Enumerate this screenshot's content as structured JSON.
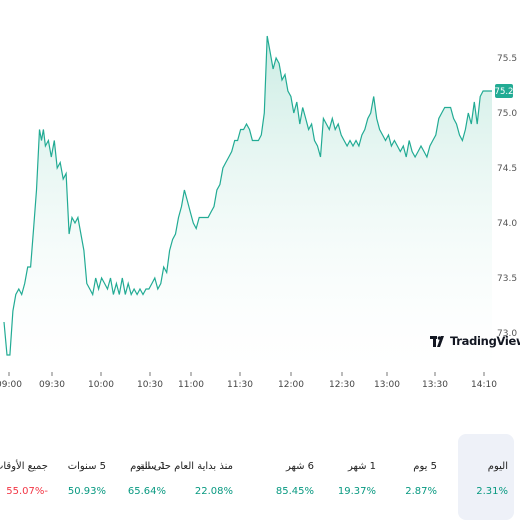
{
  "chart_data": {
    "type": "area",
    "x_ticks": [
      "09:00",
      "09:30",
      "10:00",
      "10:30",
      "11:00",
      "11:30",
      "12:00",
      "12:30",
      "13:00",
      "13:30",
      "14:10"
    ],
    "y_ticks": [
      "73.0",
      "73.5",
      "74.0",
      "74.5",
      "75.0",
      "75.5"
    ],
    "ylim": [
      72.7,
      75.7
    ],
    "xlim": [
      0,
      495
    ],
    "last_price": "75.2",
    "last_price_value": 75.2,
    "grid": false,
    "series": [
      {
        "values": [
          [
            0,
            73.1
          ],
          [
            3,
            72.8
          ],
          [
            6,
            72.8
          ],
          [
            9,
            73.2
          ],
          [
            12,
            73.35
          ],
          [
            15,
            73.4
          ],
          [
            18,
            73.35
          ],
          [
            21,
            73.45
          ],
          [
            24,
            73.6
          ],
          [
            27,
            73.6
          ],
          [
            30,
            73.95
          ],
          [
            33,
            74.3
          ],
          [
            36,
            74.85
          ],
          [
            38,
            74.75
          ],
          [
            40,
            74.85
          ],
          [
            42,
            74.7
          ],
          [
            45,
            74.75
          ],
          [
            48,
            74.6
          ],
          [
            51,
            74.75
          ],
          [
            54,
            74.5
          ],
          [
            57,
            74.55
          ],
          [
            60,
            74.4
          ],
          [
            63,
            74.45
          ],
          [
            66,
            73.9
          ],
          [
            69,
            74.05
          ],
          [
            72,
            74.0
          ],
          [
            75,
            74.05
          ],
          [
            78,
            73.9
          ],
          [
            81,
            73.75
          ],
          [
            84,
            73.45
          ],
          [
            87,
            73.4
          ],
          [
            90,
            73.35
          ],
          [
            93,
            73.5
          ],
          [
            96,
            73.4
          ],
          [
            99,
            73.5
          ],
          [
            102,
            73.45
          ],
          [
            105,
            73.4
          ],
          [
            108,
            73.5
          ],
          [
            111,
            73.35
          ],
          [
            114,
            73.45
          ],
          [
            117,
            73.35
          ],
          [
            120,
            73.5
          ],
          [
            123,
            73.35
          ],
          [
            126,
            73.45
          ],
          [
            129,
            73.35
          ],
          [
            132,
            73.4
          ],
          [
            135,
            73.35
          ],
          [
            138,
            73.4
          ],
          [
            141,
            73.35
          ],
          [
            144,
            73.4
          ],
          [
            147,
            73.4
          ],
          [
            150,
            73.45
          ],
          [
            153,
            73.5
          ],
          [
            156,
            73.4
          ],
          [
            159,
            73.45
          ],
          [
            162,
            73.6
          ],
          [
            165,
            73.55
          ],
          [
            168,
            73.75
          ],
          [
            171,
            73.85
          ],
          [
            174,
            73.9
          ],
          [
            177,
            74.05
          ],
          [
            180,
            74.15
          ],
          [
            183,
            74.3
          ],
          [
            186,
            74.2
          ],
          [
            189,
            74.1
          ],
          [
            192,
            74.0
          ],
          [
            195,
            73.95
          ],
          [
            198,
            74.05
          ],
          [
            201,
            74.05
          ],
          [
            204,
            74.05
          ],
          [
            207,
            74.05
          ],
          [
            210,
            74.1
          ],
          [
            213,
            74.15
          ],
          [
            216,
            74.3
          ],
          [
            219,
            74.35
          ],
          [
            222,
            74.5
          ],
          [
            225,
            74.55
          ],
          [
            228,
            74.6
          ],
          [
            231,
            74.65
          ],
          [
            234,
            74.75
          ],
          [
            237,
            74.75
          ],
          [
            240,
            74.85
          ],
          [
            243,
            74.85
          ],
          [
            246,
            74.9
          ],
          [
            249,
            74.85
          ],
          [
            252,
            74.75
          ],
          [
            255,
            74.75
          ],
          [
            258,
            74.75
          ],
          [
            261,
            74.8
          ],
          [
            264,
            75.0
          ],
          [
            267,
            75.7
          ],
          [
            270,
            75.55
          ],
          [
            273,
            75.4
          ],
          [
            276,
            75.5
          ],
          [
            279,
            75.45
          ],
          [
            282,
            75.3
          ],
          [
            285,
            75.35
          ],
          [
            288,
            75.2
          ],
          [
            291,
            75.15
          ],
          [
            294,
            75.0
          ],
          [
            297,
            75.1
          ],
          [
            300,
            74.9
          ],
          [
            303,
            75.05
          ],
          [
            306,
            74.95
          ],
          [
            309,
            74.85
          ],
          [
            312,
            74.9
          ],
          [
            315,
            74.75
          ],
          [
            318,
            74.7
          ],
          [
            321,
            74.6
          ],
          [
            324,
            74.95
          ],
          [
            327,
            74.9
          ],
          [
            330,
            74.85
          ],
          [
            333,
            74.95
          ],
          [
            336,
            74.85
          ],
          [
            339,
            74.9
          ],
          [
            342,
            74.8
          ],
          [
            345,
            74.75
          ],
          [
            348,
            74.7
          ],
          [
            351,
            74.75
          ],
          [
            354,
            74.7
          ],
          [
            357,
            74.75
          ],
          [
            360,
            74.7
          ],
          [
            363,
            74.8
          ],
          [
            366,
            74.85
          ],
          [
            369,
            74.95
          ],
          [
            372,
            75.0
          ],
          [
            375,
            75.15
          ],
          [
            378,
            74.95
          ],
          [
            381,
            74.85
          ],
          [
            384,
            74.8
          ],
          [
            387,
            74.75
          ],
          [
            390,
            74.8
          ],
          [
            393,
            74.7
          ],
          [
            396,
            74.75
          ],
          [
            399,
            74.7
          ],
          [
            402,
            74.65
          ],
          [
            405,
            74.7
          ],
          [
            408,
            74.6
          ],
          [
            411,
            74.75
          ],
          [
            414,
            74.65
          ],
          [
            417,
            74.6
          ],
          [
            420,
            74.65
          ],
          [
            423,
            74.7
          ],
          [
            426,
            74.65
          ],
          [
            429,
            74.6
          ],
          [
            432,
            74.7
          ],
          [
            435,
            74.75
          ],
          [
            438,
            74.8
          ],
          [
            441,
            74.95
          ],
          [
            444,
            75.0
          ],
          [
            447,
            75.05
          ],
          [
            450,
            75.05
          ],
          [
            453,
            75.05
          ],
          [
            456,
            74.95
          ],
          [
            459,
            74.9
          ],
          [
            462,
            74.8
          ],
          [
            465,
            74.75
          ],
          [
            468,
            74.85
          ],
          [
            471,
            75.0
          ],
          [
            474,
            74.9
          ],
          [
            477,
            75.1
          ],
          [
            480,
            74.9
          ],
          [
            483,
            75.15
          ],
          [
            486,
            75.2
          ],
          [
            489,
            75.2
          ],
          [
            492,
            75.2
          ],
          [
            495,
            75.2
          ]
        ]
      }
    ]
  },
  "logo": {
    "text": "TradingView"
  },
  "performance": [
    {
      "label": "اليوم",
      "value": "2.31%",
      "trend": "positive",
      "active": true
    },
    {
      "label": "5 يوم",
      "value": "2.87%",
      "trend": "positive",
      "active": false
    },
    {
      "label": "1 شهر",
      "value": "19.37%",
      "trend": "positive",
      "active": false
    },
    {
      "label": "6 شهر",
      "value": "85.45%",
      "trend": "positive",
      "active": false
    },
    {
      "label": "منذ بداية العام حتى اليوم",
      "value": "22.08%",
      "trend": "positive",
      "active": false
    },
    {
      "label": "1 سنة",
      "value": "65.64%",
      "trend": "positive",
      "active": false
    },
    {
      "label": "5 سنوات",
      "value": "50.93%",
      "trend": "positive",
      "active": false
    },
    {
      "label": "جميع الأوقات",
      "value": "55.07%-",
      "trend": "negative",
      "active": false
    }
  ],
  "colors": {
    "line": "#22ab94",
    "fill_top": "#c8ebe2",
    "fill_bottom": "#ffffff",
    "positive": "#089981",
    "negative": "#f23645",
    "price_tag": "#22ab94"
  }
}
